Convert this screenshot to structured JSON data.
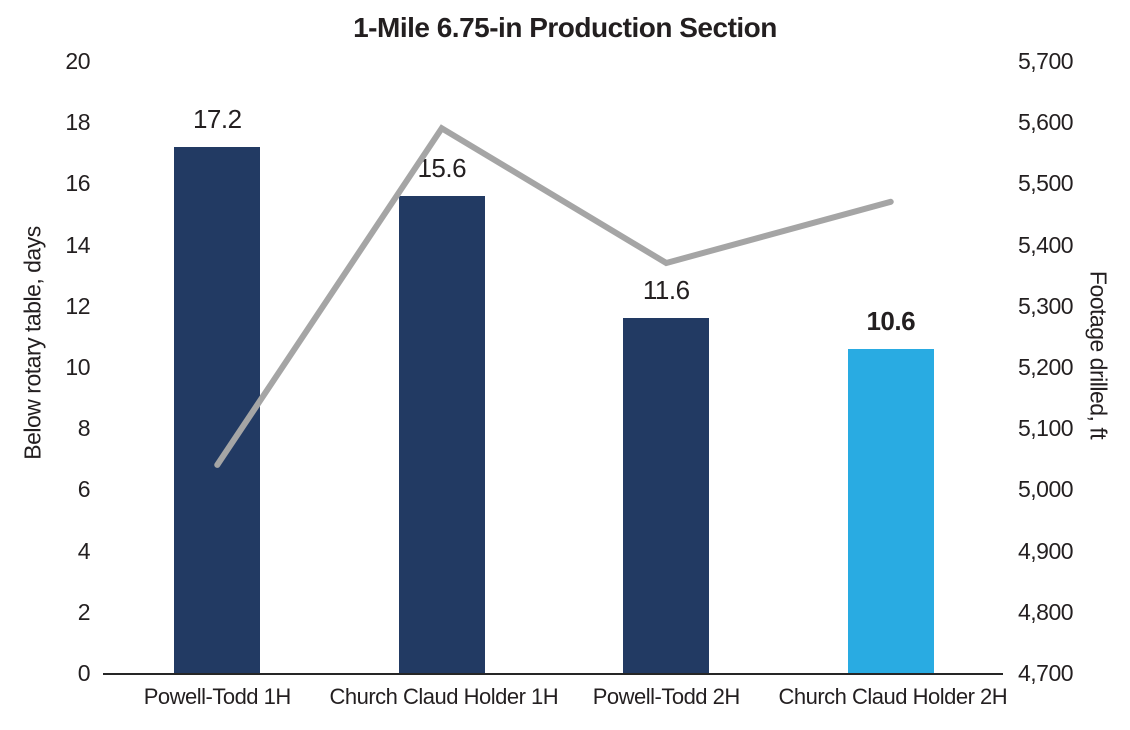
{
  "chart_data": {
    "type": "bar",
    "subtype": "bar+line-combo",
    "title": "1-Mile 6.75-in Production Section",
    "categories": [
      "Powell-Todd 1H",
      "Church Claud Holder 1H",
      "Powell-Todd 2H",
      "Church Claud Holder 2H"
    ],
    "series": [
      {
        "name": "Below rotary table, days",
        "chart_type": "bar",
        "axis": "left",
        "values": [
          17.2,
          15.6,
          11.6,
          10.6
        ],
        "data_labels": [
          "17.2",
          "15.6",
          "11.6",
          "10.6"
        ],
        "data_label_bold": [
          false,
          false,
          false,
          true
        ],
        "bar_colors": [
          "#223A63",
          "#223A63",
          "#223A63",
          "#29ABE2"
        ]
      },
      {
        "name": "Footage drilled, ft",
        "chart_type": "line",
        "axis": "right",
        "values": [
          5040,
          5590,
          5370,
          5470
        ],
        "color": "#A5A5A5",
        "stroke_width": 6
      }
    ],
    "left_axis": {
      "label": "Below rotary table, days",
      "min": 0,
      "max": 20,
      "step": 2,
      "tick_labels": [
        "0",
        "2",
        "4",
        "6",
        "8",
        "10",
        "12",
        "14",
        "16",
        "18",
        "20"
      ]
    },
    "right_axis": {
      "label": "Footage drilled, ft",
      "min": 4700,
      "max": 5700,
      "step": 100,
      "tick_labels": [
        "4,700",
        "4,800",
        "4,900",
        "5,000",
        "5,100",
        "5,200",
        "5,300",
        "5,400",
        "5,500",
        "5,600",
        "5,700"
      ]
    },
    "grid": false,
    "legend": "none",
    "background_color": "#FFFFFF",
    "text_color": "#231F20",
    "axis_line_color": "#262626"
  }
}
